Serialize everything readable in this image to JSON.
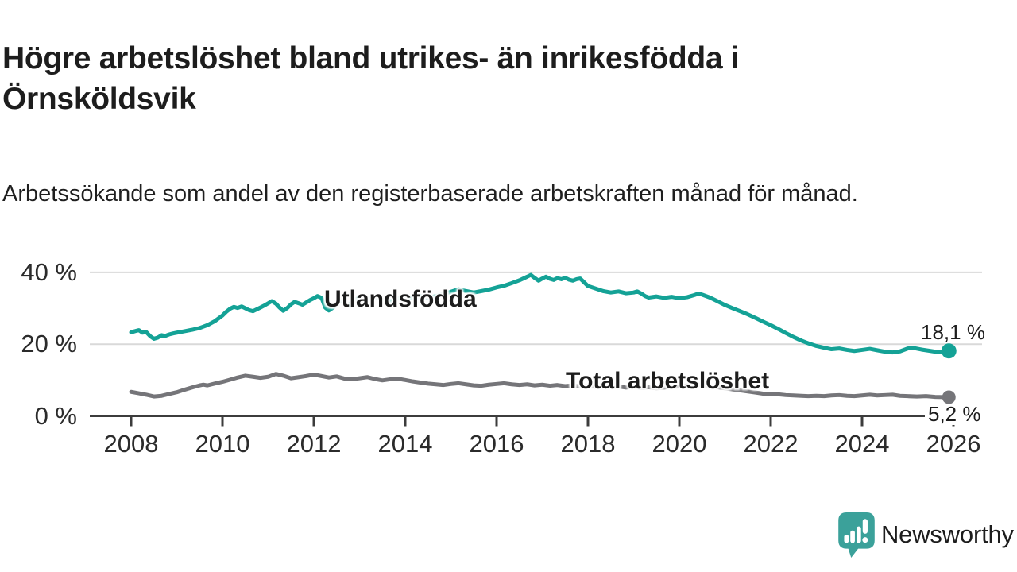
{
  "title": "Högre arbetslöshet bland utrikes- än inrikesfödda i Örnsköldsvik",
  "subtitle": "Arbetssökande som andel av den registerbaserade arbetskraften månad för månad.",
  "branding": {
    "logo_text": "Newsworthy",
    "logo_icon": "newsworthy-speech-bubble-bar-chart-icon",
    "brand_color": "#3ba19a"
  },
  "colors": {
    "title_text": "#1d1d1d",
    "tick_text": "#2b2b2b",
    "grid": "#d9d9d9",
    "axis": "#3c3c3c",
    "background": "#ffffff"
  },
  "chart_data": {
    "type": "line",
    "title": "Högre arbetslöshet bland utrikes- än inrikesfödda i Örnsköldsvik",
    "subtitle": "Arbetssökande som andel av den registerbaserade arbetskraften månad för månad.",
    "grid": "horizontal-only",
    "legend": "inline-series-labels",
    "x_axis": {
      "ticks": [
        2008,
        2010,
        2012,
        2014,
        2016,
        2018,
        2020,
        2022,
        2024,
        2026
      ],
      "tick_labels": [
        "2008",
        "2010",
        "2012",
        "2014",
        "2016",
        "2018",
        "2020",
        "2022",
        "2024",
        "2026"
      ],
      "range": [
        2007.1,
        2026.6
      ]
    },
    "y_axis": {
      "unit": "%",
      "ticks": [
        0,
        20,
        40
      ],
      "tick_labels": [
        "0 %",
        "20 %",
        "40 %"
      ],
      "range": [
        0,
        43
      ]
    },
    "series": [
      {
        "name": "Utlandsfödda",
        "color": "#14a296",
        "end_value": 18.1,
        "end_label": "18,1 %",
        "points": [
          [
            2008.0,
            23.3
          ],
          [
            2008.08,
            23.6
          ],
          [
            2008.17,
            23.9
          ],
          [
            2008.25,
            23.2
          ],
          [
            2008.33,
            23.4
          ],
          [
            2008.42,
            22.2
          ],
          [
            2008.5,
            21.5
          ],
          [
            2008.58,
            21.8
          ],
          [
            2008.67,
            22.5
          ],
          [
            2008.75,
            22.3
          ],
          [
            2008.83,
            22.7
          ],
          [
            2008.92,
            23.0
          ],
          [
            2009.0,
            23.2
          ],
          [
            2009.17,
            23.6
          ],
          [
            2009.33,
            24.0
          ],
          [
            2009.5,
            24.5
          ],
          [
            2009.67,
            25.3
          ],
          [
            2009.83,
            26.4
          ],
          [
            2010.0,
            28.0
          ],
          [
            2010.08,
            29.0
          ],
          [
            2010.17,
            29.9
          ],
          [
            2010.25,
            30.4
          ],
          [
            2010.33,
            30.1
          ],
          [
            2010.42,
            30.5
          ],
          [
            2010.5,
            30.0
          ],
          [
            2010.58,
            29.5
          ],
          [
            2010.67,
            29.2
          ],
          [
            2010.75,
            29.7
          ],
          [
            2010.83,
            30.2
          ],
          [
            2010.92,
            30.8
          ],
          [
            2011.0,
            31.4
          ],
          [
            2011.08,
            32.0
          ],
          [
            2011.17,
            31.3
          ],
          [
            2011.25,
            30.2
          ],
          [
            2011.33,
            29.3
          ],
          [
            2011.42,
            30.1
          ],
          [
            2011.5,
            31.1
          ],
          [
            2011.58,
            31.8
          ],
          [
            2011.67,
            31.4
          ],
          [
            2011.75,
            31.0
          ],
          [
            2011.83,
            31.6
          ],
          [
            2011.92,
            32.3
          ],
          [
            2012.0,
            32.8
          ],
          [
            2012.08,
            33.4
          ],
          [
            2012.17,
            32.9
          ],
          [
            2012.25,
            30.2
          ],
          [
            2012.33,
            29.4
          ],
          [
            2012.42,
            30.2
          ],
          [
            2012.5,
            31.3
          ],
          [
            2012.58,
            32.3
          ],
          [
            2012.67,
            31.5
          ],
          [
            2012.75,
            30.8
          ],
          [
            2012.83,
            31.7
          ],
          [
            2012.92,
            32.5
          ],
          [
            2013.0,
            33.0
          ],
          [
            2013.17,
            32.5
          ],
          [
            2013.33,
            33.2
          ],
          [
            2013.5,
            32.4
          ],
          [
            2013.67,
            32.0
          ],
          [
            2013.83,
            32.7
          ],
          [
            2014.0,
            33.3
          ],
          [
            2014.17,
            32.8
          ],
          [
            2014.33,
            33.5
          ],
          [
            2014.5,
            32.9
          ],
          [
            2014.67,
            33.4
          ],
          [
            2014.83,
            33.9
          ],
          [
            2015.0,
            34.6
          ],
          [
            2015.17,
            35.3
          ],
          [
            2015.33,
            34.8
          ],
          [
            2015.5,
            34.4
          ],
          [
            2015.67,
            34.8
          ],
          [
            2015.83,
            35.2
          ],
          [
            2016.0,
            35.8
          ],
          [
            2016.17,
            36.3
          ],
          [
            2016.33,
            37.0
          ],
          [
            2016.5,
            37.8
          ],
          [
            2016.67,
            38.8
          ],
          [
            2016.75,
            39.3
          ],
          [
            2016.83,
            38.5
          ],
          [
            2016.92,
            37.7
          ],
          [
            2017.0,
            38.3
          ],
          [
            2017.08,
            38.8
          ],
          [
            2017.17,
            38.2
          ],
          [
            2017.25,
            37.9
          ],
          [
            2017.33,
            38.4
          ],
          [
            2017.42,
            38.1
          ],
          [
            2017.5,
            38.5
          ],
          [
            2017.58,
            38.0
          ],
          [
            2017.67,
            37.7
          ],
          [
            2017.75,
            38.1
          ],
          [
            2017.83,
            38.3
          ],
          [
            2017.92,
            37.2
          ],
          [
            2018.0,
            36.2
          ],
          [
            2018.17,
            35.5
          ],
          [
            2018.33,
            34.8
          ],
          [
            2018.5,
            34.4
          ],
          [
            2018.67,
            34.7
          ],
          [
            2018.83,
            34.2
          ],
          [
            2019.0,
            34.4
          ],
          [
            2019.08,
            34.7
          ],
          [
            2019.17,
            34.1
          ],
          [
            2019.25,
            33.4
          ],
          [
            2019.33,
            33.0
          ],
          [
            2019.5,
            33.3
          ],
          [
            2019.67,
            32.9
          ],
          [
            2019.83,
            33.2
          ],
          [
            2020.0,
            32.8
          ],
          [
            2020.17,
            33.1
          ],
          [
            2020.33,
            33.7
          ],
          [
            2020.42,
            34.1
          ],
          [
            2020.5,
            33.8
          ],
          [
            2020.67,
            33.0
          ],
          [
            2020.83,
            32.0
          ],
          [
            2021.0,
            30.9
          ],
          [
            2021.17,
            30.0
          ],
          [
            2021.33,
            29.2
          ],
          [
            2021.5,
            28.3
          ],
          [
            2021.67,
            27.3
          ],
          [
            2021.83,
            26.3
          ],
          [
            2022.0,
            25.3
          ],
          [
            2022.17,
            24.2
          ],
          [
            2022.33,
            23.1
          ],
          [
            2022.5,
            22.0
          ],
          [
            2022.67,
            21.0
          ],
          [
            2022.83,
            20.2
          ],
          [
            2023.0,
            19.5
          ],
          [
            2023.17,
            19.0
          ],
          [
            2023.33,
            18.6
          ],
          [
            2023.5,
            18.8
          ],
          [
            2023.67,
            18.4
          ],
          [
            2023.83,
            18.1
          ],
          [
            2024.0,
            18.4
          ],
          [
            2024.17,
            18.7
          ],
          [
            2024.33,
            18.3
          ],
          [
            2024.5,
            17.9
          ],
          [
            2024.67,
            17.7
          ],
          [
            2024.83,
            18.0
          ],
          [
            2025.0,
            18.8
          ],
          [
            2025.1,
            19.0
          ],
          [
            2025.3,
            18.5
          ],
          [
            2025.5,
            18.1
          ],
          [
            2025.65,
            17.8
          ],
          [
            2025.75,
            17.9
          ],
          [
            2025.9,
            18.1
          ]
        ]
      },
      {
        "name": "Total arbetslöshet",
        "color": "#757579",
        "end_value": 5.2,
        "end_label": "5,2 %",
        "points": [
          [
            2008.0,
            6.7
          ],
          [
            2008.17,
            6.3
          ],
          [
            2008.33,
            5.9
          ],
          [
            2008.5,
            5.4
          ],
          [
            2008.67,
            5.6
          ],
          [
            2008.83,
            6.1
          ],
          [
            2009.0,
            6.6
          ],
          [
            2009.17,
            7.3
          ],
          [
            2009.33,
            7.9
          ],
          [
            2009.5,
            8.5
          ],
          [
            2009.58,
            8.7
          ],
          [
            2009.67,
            8.5
          ],
          [
            2009.83,
            9.0
          ],
          [
            2010.0,
            9.5
          ],
          [
            2010.17,
            10.1
          ],
          [
            2010.33,
            10.7
          ],
          [
            2010.5,
            11.2
          ],
          [
            2010.67,
            10.9
          ],
          [
            2010.83,
            10.6
          ],
          [
            2011.0,
            10.9
          ],
          [
            2011.17,
            11.7
          ],
          [
            2011.33,
            11.2
          ],
          [
            2011.5,
            10.5
          ],
          [
            2011.67,
            10.8
          ],
          [
            2011.83,
            11.1
          ],
          [
            2012.0,
            11.5
          ],
          [
            2012.17,
            11.1
          ],
          [
            2012.33,
            10.7
          ],
          [
            2012.5,
            11.0
          ],
          [
            2012.67,
            10.4
          ],
          [
            2012.83,
            10.2
          ],
          [
            2013.0,
            10.5
          ],
          [
            2013.17,
            10.8
          ],
          [
            2013.33,
            10.3
          ],
          [
            2013.5,
            9.9
          ],
          [
            2013.67,
            10.2
          ],
          [
            2013.83,
            10.4
          ],
          [
            2014.0,
            10.0
          ],
          [
            2014.17,
            9.6
          ],
          [
            2014.33,
            9.3
          ],
          [
            2014.5,
            9.0
          ],
          [
            2014.67,
            8.8
          ],
          [
            2014.83,
            8.6
          ],
          [
            2015.0,
            8.9
          ],
          [
            2015.17,
            9.1
          ],
          [
            2015.33,
            8.8
          ],
          [
            2015.5,
            8.5
          ],
          [
            2015.67,
            8.4
          ],
          [
            2015.83,
            8.7
          ],
          [
            2016.0,
            8.9
          ],
          [
            2016.17,
            9.1
          ],
          [
            2016.33,
            8.8
          ],
          [
            2016.5,
            8.6
          ],
          [
            2016.67,
            8.8
          ],
          [
            2016.83,
            8.5
          ],
          [
            2017.0,
            8.7
          ],
          [
            2017.17,
            8.4
          ],
          [
            2017.33,
            8.6
          ],
          [
            2017.5,
            8.3
          ],
          [
            2017.67,
            8.5
          ],
          [
            2017.83,
            8.2
          ],
          [
            2018.0,
            8.4
          ],
          [
            2018.17,
            8.1
          ],
          [
            2018.33,
            8.3
          ],
          [
            2018.5,
            8.0
          ],
          [
            2018.67,
            8.2
          ],
          [
            2018.83,
            7.9
          ],
          [
            2019.0,
            8.1
          ],
          [
            2019.17,
            7.8
          ],
          [
            2019.33,
            8.0
          ],
          [
            2019.5,
            7.7
          ],
          [
            2019.67,
            7.9
          ],
          [
            2019.83,
            8.1
          ],
          [
            2020.0,
            8.2
          ],
          [
            2020.17,
            8.5
          ],
          [
            2020.33,
            8.8
          ],
          [
            2020.5,
            8.6
          ],
          [
            2020.67,
            8.3
          ],
          [
            2020.83,
            8.0
          ],
          [
            2021.0,
            7.7
          ],
          [
            2021.17,
            7.4
          ],
          [
            2021.33,
            7.1
          ],
          [
            2021.5,
            6.8
          ],
          [
            2021.67,
            6.5
          ],
          [
            2021.83,
            6.2
          ],
          [
            2022.0,
            6.1
          ],
          [
            2022.17,
            6.0
          ],
          [
            2022.33,
            5.8
          ],
          [
            2022.5,
            5.7
          ],
          [
            2022.67,
            5.6
          ],
          [
            2022.83,
            5.5
          ],
          [
            2023.0,
            5.6
          ],
          [
            2023.17,
            5.5
          ],
          [
            2023.33,
            5.7
          ],
          [
            2023.5,
            5.8
          ],
          [
            2023.67,
            5.6
          ],
          [
            2023.83,
            5.5
          ],
          [
            2024.0,
            5.7
          ],
          [
            2024.17,
            5.9
          ],
          [
            2024.33,
            5.7
          ],
          [
            2024.5,
            5.8
          ],
          [
            2024.67,
            5.9
          ],
          [
            2024.83,
            5.6
          ],
          [
            2025.0,
            5.5
          ],
          [
            2025.2,
            5.4
          ],
          [
            2025.4,
            5.5
          ],
          [
            2025.6,
            5.3
          ],
          [
            2025.9,
            5.2
          ]
        ]
      }
    ]
  }
}
